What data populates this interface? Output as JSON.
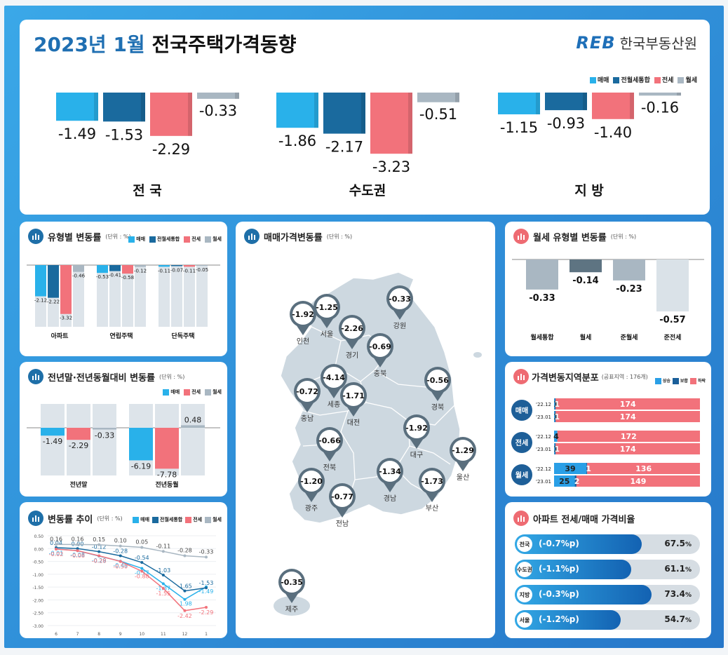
{
  "header": {
    "title_year": "2023년 1월",
    "title_main": "전국주택가격동향",
    "logo": "REB",
    "org": "한국부동산원"
  },
  "colors": {
    "maemae": "#29b1ea",
    "jeonwolse": "#1a6a9e",
    "jeonse": "#f2727b",
    "wolse": "#a9b7c2",
    "rise": "#2a9fe6",
    "flat": "#1a5f9a",
    "fall": "#f2727b"
  },
  "top_legend": [
    "매매",
    "전월세통합",
    "전세",
    "월세"
  ],
  "top_chart": {
    "groups": [
      {
        "name": "전 국",
        "values": [
          -1.49,
          -1.53,
          -2.29,
          -0.33
        ]
      },
      {
        "name": "수도권",
        "values": [
          -1.86,
          -2.17,
          -3.23,
          -0.51
        ]
      },
      {
        "name": "지 방",
        "values": [
          -1.15,
          -0.93,
          -1.4,
          -0.16
        ]
      }
    ]
  },
  "type_panel": {
    "title": "유형별 변동률",
    "unit": "(단위 : %)",
    "legend": [
      "매매",
      "전월세통합",
      "전세",
      "월세"
    ],
    "groups": [
      {
        "name": "아파트",
        "values": [
          -2.12,
          -2.22,
          -3.32,
          -0.46
        ]
      },
      {
        "name": "연립주택",
        "values": [
          -0.53,
          -0.41,
          -0.58,
          -0.12
        ]
      },
      {
        "name": "단독주택",
        "values": [
          -0.11,
          -0.07,
          -0.11,
          -0.05
        ]
      }
    ]
  },
  "yoy_panel": {
    "title": "전년말·전년동월대비 변동률",
    "unit": "(단위 : %)",
    "legend": [
      "매매",
      "전세",
      "월세"
    ],
    "groups": [
      {
        "name": "전년말",
        "values": [
          -1.49,
          -2.29,
          -0.33
        ]
      },
      {
        "name": "전년동월",
        "values": [
          -6.19,
          -7.78,
          0.48
        ]
      }
    ]
  },
  "trend_panel": {
    "title": "변동률 추이",
    "unit": "(단위 : %)",
    "legend": [
      "매매",
      "전월세통합",
      "전세",
      "월세"
    ]
  },
  "map_panel": {
    "title": "매매가격변동률",
    "unit": "(단위 : %)",
    "regions": [
      {
        "name": "인천",
        "value": "-1.92"
      },
      {
        "name": "서울",
        "value": "-1.25"
      },
      {
        "name": "경기",
        "value": "-2.26"
      },
      {
        "name": "강원",
        "value": "-0.33"
      },
      {
        "name": "충북",
        "value": "-0.69"
      },
      {
        "name": "세종",
        "value": "-4.14"
      },
      {
        "name": "충남",
        "value": "-0.72"
      },
      {
        "name": "대전",
        "value": "-1.71"
      },
      {
        "name": "경북",
        "value": "-0.56"
      },
      {
        "name": "전북",
        "value": "-0.66"
      },
      {
        "name": "대구",
        "value": "-1.92"
      },
      {
        "name": "울산",
        "value": "-1.29"
      },
      {
        "name": "광주",
        "value": "-1.20"
      },
      {
        "name": "경남",
        "value": "-1.34"
      },
      {
        "name": "부산",
        "value": "-1.73"
      },
      {
        "name": "전남",
        "value": "-0.77"
      },
      {
        "name": "제주",
        "value": "-0.35"
      }
    ]
  },
  "wolse_panel": {
    "title": "월세 유형별 변동률",
    "unit": "(단위 : %)",
    "bars": [
      {
        "name": "월세통합",
        "value": -0.33
      },
      {
        "name": "월세",
        "value": -0.14
      },
      {
        "name": "준월세",
        "value": -0.23
      },
      {
        "name": "준전세",
        "value": -0.57
      }
    ]
  },
  "dist_panel": {
    "title": "가격변동지역분포",
    "unit": "(공표지역 : 176개)",
    "legend": [
      "상승",
      "보합",
      "하락"
    ],
    "groups": [
      {
        "name": "매매",
        "rows": [
          {
            "period": "'22.12",
            "rise": 1,
            "flat": 1,
            "fall": 174
          },
          {
            "period": "'23.01",
            "rise": 1,
            "flat": 1,
            "fall": 174
          }
        ]
      },
      {
        "name": "전세",
        "rows": [
          {
            "period": "'22.12",
            "rise": 4,
            "flat": 0,
            "fall": 172
          },
          {
            "period": "'23.01",
            "rise": 1,
            "flat": 1,
            "fall": 174
          }
        ]
      },
      {
        "name": "월세",
        "rows": [
          {
            "period": "'22.12",
            "rise": 39,
            "flat": 1,
            "fall": 136
          },
          {
            "period": "'23.01",
            "rise": 25,
            "flat": 2,
            "fall": 149
          }
        ]
      }
    ]
  },
  "ratio_panel": {
    "title": "아파트 전세/매매 가격비율",
    "rows": [
      {
        "region": "전국",
        "delta": "(-0.7%p)",
        "value": "67.5",
        "pct": "%",
        "ratio": 67.5
      },
      {
        "region": "수도권",
        "delta": "(-1.1%p)",
        "value": "61.1",
        "pct": "%",
        "ratio": 61.1
      },
      {
        "region": "지방",
        "delta": "(-0.3%p)",
        "value": "73.4",
        "pct": "%",
        "ratio": 73.4
      },
      {
        "region": "서울",
        "delta": "(-1.2%p)",
        "value": "54.7",
        "pct": "%",
        "ratio": 54.7
      }
    ]
  },
  "chart_data": [
    {
      "type": "bar",
      "title": "2023년 1월 전국주택가격동향",
      "categories": [
        "전 국",
        "수도권",
        "지 방"
      ],
      "series": [
        {
          "name": "매매",
          "values": [
            -1.49,
            -1.86,
            -1.15
          ]
        },
        {
          "name": "전월세통합",
          "values": [
            -1.53,
            -2.17,
            -0.93
          ]
        },
        {
          "name": "전세",
          "values": [
            -2.29,
            -3.23,
            -1.4
          ]
        },
        {
          "name": "월세",
          "values": [
            -0.33,
            -0.51,
            -0.16
          ]
        }
      ]
    },
    {
      "type": "bar",
      "title": "유형별 변동률",
      "categories": [
        "아파트",
        "연립주택",
        "단독주택"
      ],
      "series": [
        {
          "name": "매매",
          "values": [
            -2.12,
            -0.53,
            -0.11
          ]
        },
        {
          "name": "전월세통합",
          "values": [
            -2.22,
            -0.41,
            -0.07
          ]
        },
        {
          "name": "전세",
          "values": [
            -3.32,
            -0.58,
            -0.11
          ]
        },
        {
          "name": "월세",
          "values": [
            -0.46,
            -0.12,
            -0.05
          ]
        }
      ]
    },
    {
      "type": "bar",
      "title": "전년말·전년동월대비 변동률",
      "categories": [
        "전년말",
        "전년동월"
      ],
      "series": [
        {
          "name": "매매",
          "values": [
            -1.49,
            -6.19
          ]
        },
        {
          "name": "전세",
          "values": [
            -2.29,
            -7.78
          ]
        },
        {
          "name": "월세",
          "values": [
            -0.33,
            0.48
          ]
        }
      ]
    },
    {
      "type": "line",
      "title": "변동률 추이",
      "x": [
        "6",
        "7",
        "8",
        "9",
        "10",
        "11",
        "12",
        "1"
      ],
      "yticks": [
        "0.50",
        "0.00",
        "-0.50",
        "-1.00",
        "-1.50",
        "-2.00",
        "-2.50",
        "-3.00"
      ],
      "ylim": [
        -3.0,
        0.5
      ],
      "series": [
        {
          "name": "매매",
          "values": [
            -0.01,
            -0.08,
            -0.29,
            -0.49,
            -0.77,
            -1.37,
            -1.98,
            -1.49
          ]
        },
        {
          "name": "전월세통합",
          "values": [
            0.04,
            0.0,
            -0.12,
            -0.28,
            -0.54,
            -1.03,
            -1.65,
            -1.53
          ]
        },
        {
          "name": "전세",
          "values": [
            -0.02,
            -0.08,
            -0.28,
            -0.5,
            -0.88,
            -1.55,
            -2.42,
            -2.29
          ]
        },
        {
          "name": "월세",
          "values": [
            0.16,
            0.16,
            0.15,
            0.1,
            0.05,
            -0.11,
            -0.28,
            -0.33
          ]
        }
      ]
    },
    {
      "type": "bar",
      "title": "월세 유형별 변동률",
      "categories": [
        "월세통합",
        "월세",
        "준월세",
        "준전세"
      ],
      "values": [
        -0.33,
        -0.14,
        -0.23,
        -0.57
      ]
    },
    {
      "type": "bar",
      "title": "가격변동지역분포",
      "categories": [
        "매매 '22.12",
        "매매 '23.01",
        "전세 '22.12",
        "전세 '23.01",
        "월세 '22.12",
        "월세 '23.01"
      ],
      "series": [
        {
          "name": "상승",
          "values": [
            1,
            1,
            4,
            1,
            39,
            25
          ]
        },
        {
          "name": "보합",
          "values": [
            1,
            1,
            0,
            1,
            1,
            2
          ]
        },
        {
          "name": "하락",
          "values": [
            174,
            174,
            172,
            174,
            136,
            149
          ]
        }
      ]
    },
    {
      "type": "bar",
      "title": "아파트 전세/매매 가격비율",
      "categories": [
        "전국",
        "수도권",
        "지방",
        "서울"
      ],
      "values": [
        67.5,
        61.1,
        73.4,
        54.7
      ],
      "changes": [
        "-0.7%p",
        "-1.1%p",
        "-0.3%p",
        "-1.2%p"
      ]
    }
  ]
}
